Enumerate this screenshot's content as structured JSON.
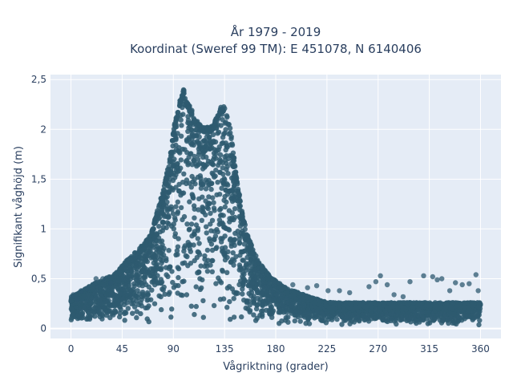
{
  "chart_data": {
    "type": "scatter",
    "title_line1": "År 1979 - 2019",
    "title_line2": "Koordinat (Sweref 99 TM): E 451078, N 6140406",
    "xlabel": "Vågriktning (grader)",
    "ylabel": "Signifikant våghöjd (m)",
    "xlim": [
      -18,
      378
    ],
    "ylim": [
      -0.1,
      2.55
    ],
    "x_ticks": [
      0,
      45,
      90,
      135,
      180,
      225,
      270,
      315,
      360
    ],
    "x_tick_labels": [
      "0",
      "45",
      "90",
      "135",
      "180",
      "225",
      "270",
      "315",
      "360"
    ],
    "y_ticks": [
      0,
      0.5,
      1,
      1.5,
      2,
      2.5
    ],
    "y_tick_labels": [
      "0",
      "0,5",
      "1",
      "1,5",
      "2",
      "2,5"
    ],
    "grid": true,
    "legend": "none",
    "marker_color": "#2e5a70",
    "plot_bg": "#e5ecf6",
    "envelope_upper": {
      "x": [
        0,
        10,
        20,
        30,
        40,
        50,
        60,
        70,
        75,
        80,
        85,
        88,
        90,
        93,
        96,
        99,
        102,
        106,
        110,
        115,
        120,
        125,
        130,
        133,
        136,
        139,
        142,
        146,
        150,
        155,
        160,
        165,
        170,
        175,
        180,
        190,
        200,
        210,
        220,
        230,
        240,
        260,
        280,
        300,
        320,
        340,
        360
      ],
      "y": [
        0.32,
        0.38,
        0.45,
        0.5,
        0.56,
        0.7,
        0.8,
        0.95,
        1.15,
        1.35,
        1.6,
        1.8,
        2.0,
        2.15,
        2.3,
        2.42,
        2.28,
        2.2,
        2.1,
        2.02,
        2.02,
        2.05,
        2.18,
        2.25,
        2.2,
        2.1,
        1.85,
        1.5,
        1.2,
        0.95,
        0.8,
        0.68,
        0.6,
        0.52,
        0.48,
        0.4,
        0.36,
        0.32,
        0.28,
        0.26,
        0.26,
        0.26,
        0.26,
        0.26,
        0.26,
        0.26,
        0.26
      ]
    },
    "outliers": {
      "x": [
        2,
        5,
        9,
        14,
        22,
        28,
        35,
        195,
        208,
        216,
        226,
        236,
        245,
        262,
        268,
        272,
        278,
        284,
        292,
        298,
        310,
        318,
        322,
        326,
        333,
        338,
        344,
        350,
        356,
        358
      ],
      "y": [
        0.34,
        0.3,
        0.38,
        0.4,
        0.5,
        0.5,
        0.46,
        0.44,
        0.41,
        0.43,
        0.38,
        0.38,
        0.36,
        0.42,
        0.47,
        0.53,
        0.44,
        0.34,
        0.32,
        0.47,
        0.53,
        0.52,
        0.49,
        0.5,
        0.38,
        0.46,
        0.44,
        0.45,
        0.54,
        0.38
      ]
    }
  }
}
